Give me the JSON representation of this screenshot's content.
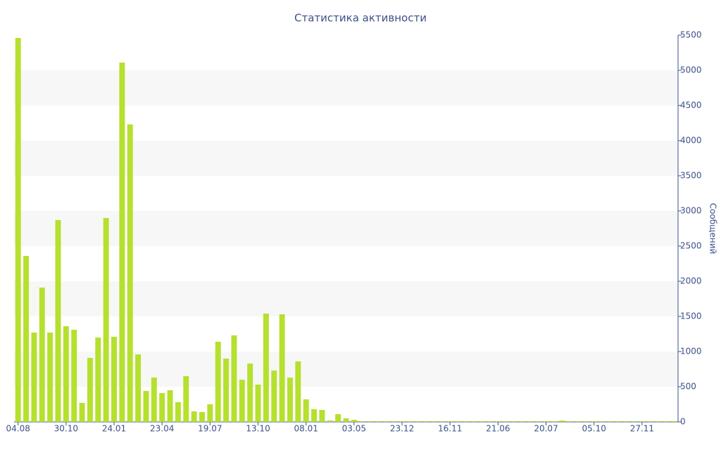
{
  "chart_data": {
    "type": "bar",
    "title": "Статистика активности",
    "y_label": "Сообщений",
    "y_axis_side": "right",
    "color": "#b6e02e",
    "grid": "bands",
    "categories": [
      "04.08",
      null,
      null,
      null,
      null,
      null,
      "30.10",
      null,
      null,
      null,
      null,
      null,
      "24.01",
      null,
      null,
      null,
      null,
      null,
      "23.04",
      null,
      null,
      null,
      null,
      null,
      "19.07",
      null,
      null,
      null,
      null,
      null,
      "13.10",
      null,
      null,
      null,
      null,
      null,
      "08.01",
      null,
      null,
      null,
      null,
      null,
      "03.05",
      null,
      null,
      null,
      null,
      null,
      "23.12",
      null,
      null,
      null,
      null,
      null,
      "16.11",
      null,
      null,
      null,
      null,
      null,
      "21.06",
      null,
      null,
      null,
      null,
      null,
      "20.07",
      null,
      null,
      null,
      null,
      null,
      "05.10",
      null,
      null,
      null,
      null,
      null,
      "27.11",
      null,
      null,
      null,
      null
    ],
    "values": [
      5460,
      2360,
      1270,
      1910,
      1270,
      2870,
      1360,
      1310,
      270,
      910,
      1200,
      2900,
      1210,
      5110,
      4230,
      960,
      440,
      630,
      410,
      450,
      280,
      650,
      150,
      140,
      250,
      1140,
      900,
      1230,
      600,
      830,
      530,
      1540,
      730,
      1530,
      630,
      860,
      320,
      180,
      170,
      20,
      110,
      50,
      30,
      10,
      10,
      10,
      10,
      10,
      10,
      10,
      10,
      10,
      10,
      10,
      10,
      10,
      10,
      10,
      10,
      10,
      10,
      10,
      10,
      10,
      10,
      10,
      10,
      10,
      20,
      10,
      10,
      10,
      10,
      10,
      10,
      10,
      10,
      10,
      10,
      10,
      10,
      10,
      10
    ],
    "ylim": [
      0,
      5500
    ],
    "yticks": [
      0,
      500,
      1000,
      1500,
      2000,
      2500,
      3000,
      3500,
      4000,
      4500,
      5000,
      5500
    ]
  }
}
